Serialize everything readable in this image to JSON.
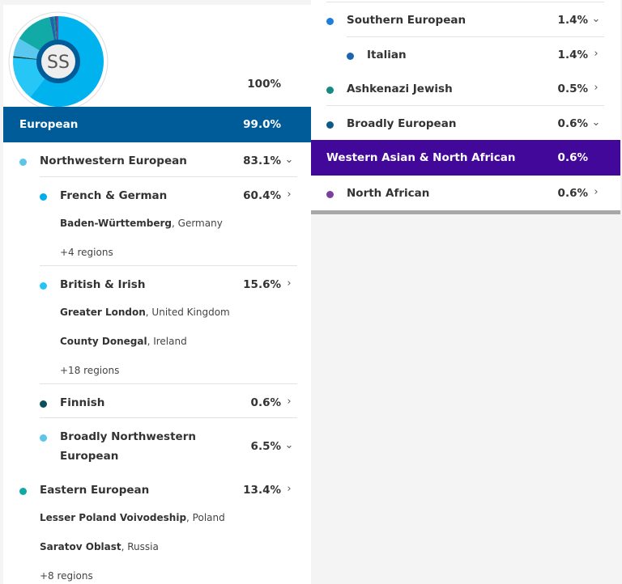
{
  "avatar": {
    "initials": "SS"
  },
  "total": "100%",
  "left": {
    "group": {
      "label": "European",
      "pct": "99.0%",
      "color": "#005b99"
    },
    "items": [
      {
        "label": "Northwestern European",
        "pct": "83.1%",
        "color": "#5ec5ea",
        "icon": "chevron-down-icon"
      },
      {
        "label": "French & German",
        "pct": "60.4%",
        "color": "#00aee9",
        "icon": "chevron-right-icon",
        "regions": [
          {
            "name": "Baden-Württemberg",
            "country": ", Germany"
          }
        ],
        "more": "+4 regions"
      },
      {
        "label": "British & Irish",
        "pct": "15.6%",
        "color": "#26c4f4",
        "icon": "chevron-right-icon",
        "regions": [
          {
            "name": "Greater London",
            "country": ", United Kingdom"
          },
          {
            "name": "County Donegal",
            "country": ", Ireland"
          }
        ],
        "more": "+18 regions"
      },
      {
        "label": "Finnish",
        "pct": "0.6%",
        "color": "#0b4f5c",
        "icon": "chevron-right-icon"
      },
      {
        "label": "Broadly Northwestern",
        "label2": "European",
        "pct": "6.5%",
        "color": "#5ec5ea",
        "icon": "chevron-down-icon"
      },
      {
        "label": "Eastern European",
        "pct": "13.4%",
        "color": "#10a9a9",
        "icon": "chevron-right-icon",
        "regions": [
          {
            "name": "Lesser Poland Voivodeship",
            "country": ", Poland"
          },
          {
            "name": "Saratov Oblast",
            "country": ", Russia"
          }
        ],
        "more": "+8 regions"
      }
    ]
  },
  "right": {
    "items": [
      {
        "label": "Southern European",
        "pct": "1.4%",
        "color": "#1e7fd8",
        "icon": "chevron-down-icon"
      },
      {
        "label": "Italian",
        "pct": "1.4%",
        "color": "#1c64b0",
        "icon": "chevron-right-icon"
      },
      {
        "label": "Ashkenazi Jewish",
        "pct": "0.5%",
        "color": "#148a80",
        "icon": "chevron-right-icon"
      },
      {
        "label": "Broadly European",
        "pct": "0.6%",
        "color": "#0e5a86",
        "icon": "chevron-down-icon"
      }
    ],
    "group": {
      "label": "Western Asian & North African",
      "pct": "0.6%",
      "color": "#41089a"
    },
    "after": [
      {
        "label": "North African",
        "pct": "0.6%",
        "color": "#7b3fa0",
        "icon": "chevron-right-icon"
      }
    ]
  },
  "donut": [
    {
      "value": 60.4,
      "color": "#00b3ee"
    },
    {
      "value": 15.6,
      "color": "#26c6f6"
    },
    {
      "value": 0.6,
      "color": "#0b4f5c"
    },
    {
      "value": 6.5,
      "color": "#5ac8ee"
    },
    {
      "value": 13.4,
      "color": "#12aaa6"
    },
    {
      "value": 1.4,
      "color": "#1c64b0"
    },
    {
      "value": 0.5,
      "color": "#148a80"
    },
    {
      "value": 0.6,
      "color": "#0e5a86"
    },
    {
      "value": 0.6,
      "color": "#7b3fa0"
    }
  ]
}
